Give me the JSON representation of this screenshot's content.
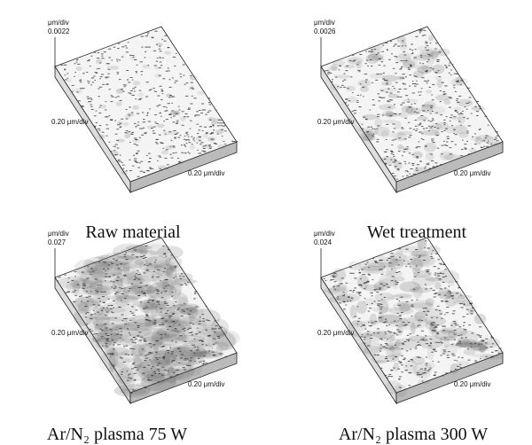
{
  "panels": [
    {
      "z_unit": "μm/div",
      "z_value": "0.0022",
      "y_label": "0.20 μm/div",
      "x_label": "0.20 μm/div",
      "caption": "Raw material"
    },
    {
      "z_unit": "μm/div",
      "z_value": "0.0026",
      "y_label": "0.20 μm/div",
      "x_label": "0.20 μm/div",
      "caption": "Wet treatment"
    },
    {
      "z_unit": "μm/div",
      "z_value": "0.027",
      "y_label": "0.20 μm/div",
      "x_label": "0.20 μm/div",
      "caption": "Ar/N₂ plasma 75 W"
    },
    {
      "z_unit": "μm/div",
      "z_value": "0.024",
      "y_label": "0.20 μm/div",
      "x_label": "0.20 μm/div",
      "caption": "Ar/N₂ plasma 300 W"
    }
  ]
}
